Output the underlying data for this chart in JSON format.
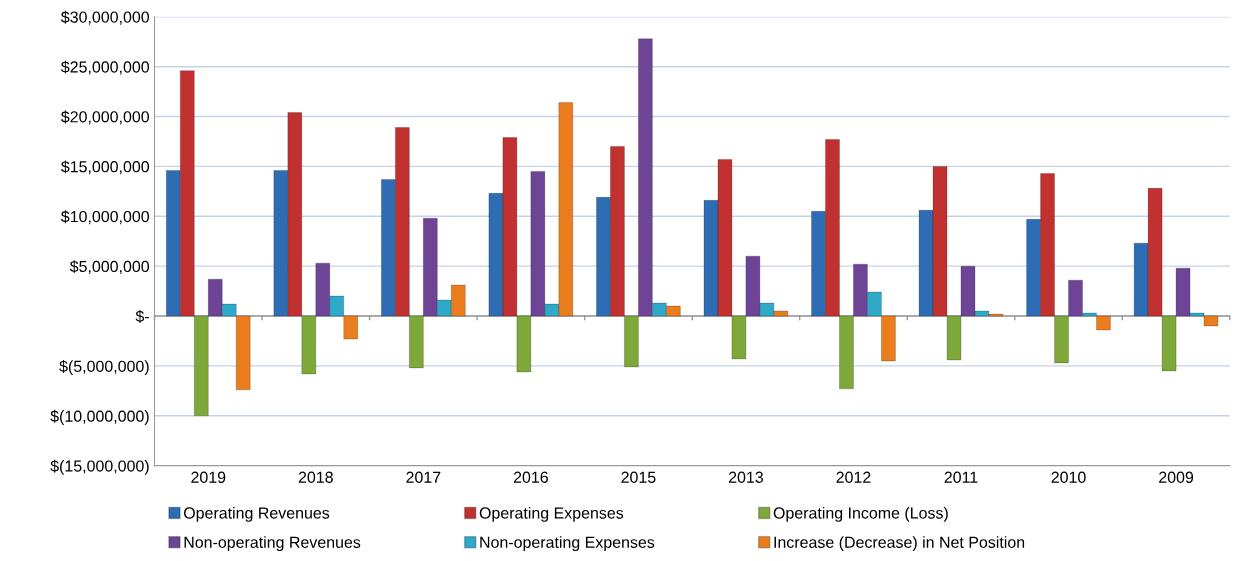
{
  "chart_data": {
    "type": "bar",
    "categories": [
      "2019",
      "2018",
      "2017",
      "2016",
      "2015",
      "2013",
      "2012",
      "2011",
      "2010",
      "2009"
    ],
    "series": [
      {
        "name": "Operating Revenues",
        "color": "#2e6db4",
        "values": [
          14600000,
          14600000,
          13700000,
          12300000,
          11900000,
          11600000,
          10500000,
          10600000,
          9700000,
          7300000
        ]
      },
      {
        "name": "Operating Expenses",
        "color": "#c0312f",
        "values": [
          24600000,
          20400000,
          18900000,
          17900000,
          17000000,
          15700000,
          17700000,
          15000000,
          14300000,
          12800000
        ]
      },
      {
        "name": "Operating Income (Loss)",
        "color": "#7fa83a",
        "values": [
          -10000000,
          -5800000,
          -5200000,
          -5600000,
          -5100000,
          -4300000,
          -7300000,
          -4400000,
          -4700000,
          -5500000
        ]
      },
      {
        "name": "Non-operating Revenues",
        "color": "#6e4596",
        "values": [
          3700000,
          5300000,
          9800000,
          14500000,
          27800000,
          6000000,
          5200000,
          5000000,
          3600000,
          4800000
        ]
      },
      {
        "name": "Non-operating Expenses",
        "color": "#2fa9c8",
        "values": [
          1200000,
          2000000,
          1600000,
          1200000,
          1300000,
          1300000,
          2400000,
          500000,
          300000,
          300000
        ]
      },
      {
        "name": "Increase (Decrease) in Net Position",
        "color": "#ea7d1e",
        "values": [
          -7400000,
          -2300000,
          3100000,
          21400000,
          1000000,
          500000,
          -4500000,
          200000,
          -1400000,
          -1000000
        ]
      }
    ],
    "ylim": [
      -15000000,
      30000000
    ],
    "yticks": [
      {
        "value": -15000000,
        "label": "$(15,000,000)"
      },
      {
        "value": -10000000,
        "label": "$(10,000,000)"
      },
      {
        "value": -5000000,
        "label": "$(5,000,000)"
      },
      {
        "value": 0,
        "label": "$-"
      },
      {
        "value": 5000000,
        "label": "$5,000,000"
      },
      {
        "value": 10000000,
        "label": "$10,000,000"
      },
      {
        "value": 15000000,
        "label": "$15,000,000"
      },
      {
        "value": 20000000,
        "label": "$20,000,000"
      },
      {
        "value": 25000000,
        "label": "$25,000,000"
      },
      {
        "value": 30000000,
        "label": "$30,000,000"
      }
    ],
    "grid": "y",
    "legend": "bottom"
  }
}
